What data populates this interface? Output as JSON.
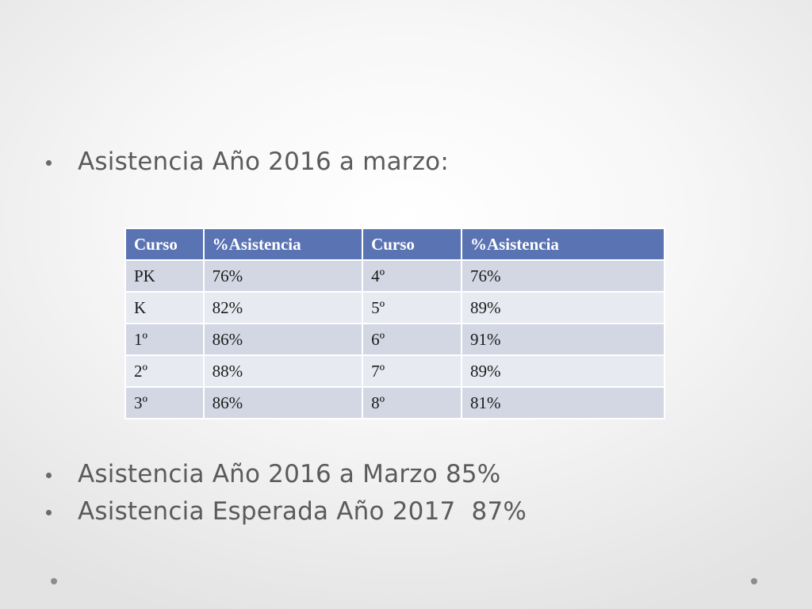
{
  "bullets": [
    "Asistencia Año 2016 a marzo:",
    "Asistencia Año 2016 a Marzo 85%",
    "Asistencia Esperada Año 2017  87%"
  ],
  "table": {
    "headers": [
      "Curso",
      "%Asistencia",
      "Curso",
      "%Asistencia"
    ],
    "rows": [
      [
        "PK",
        "76%",
        "4º",
        "76%"
      ],
      [
        "K",
        "82%",
        "5º",
        "89%"
      ],
      [
        "1º",
        "86%",
        "6º",
        "91%"
      ],
      [
        "2º",
        "88%",
        "7º",
        "89%"
      ],
      [
        "3º",
        "86%",
        "8º",
        "81%"
      ]
    ]
  },
  "colors": {
    "header_bg": "#5a73b3",
    "row_bg": "#d3d7e4",
    "row_alt_bg": "#e8eaf1",
    "text": "#5b5b5b"
  }
}
